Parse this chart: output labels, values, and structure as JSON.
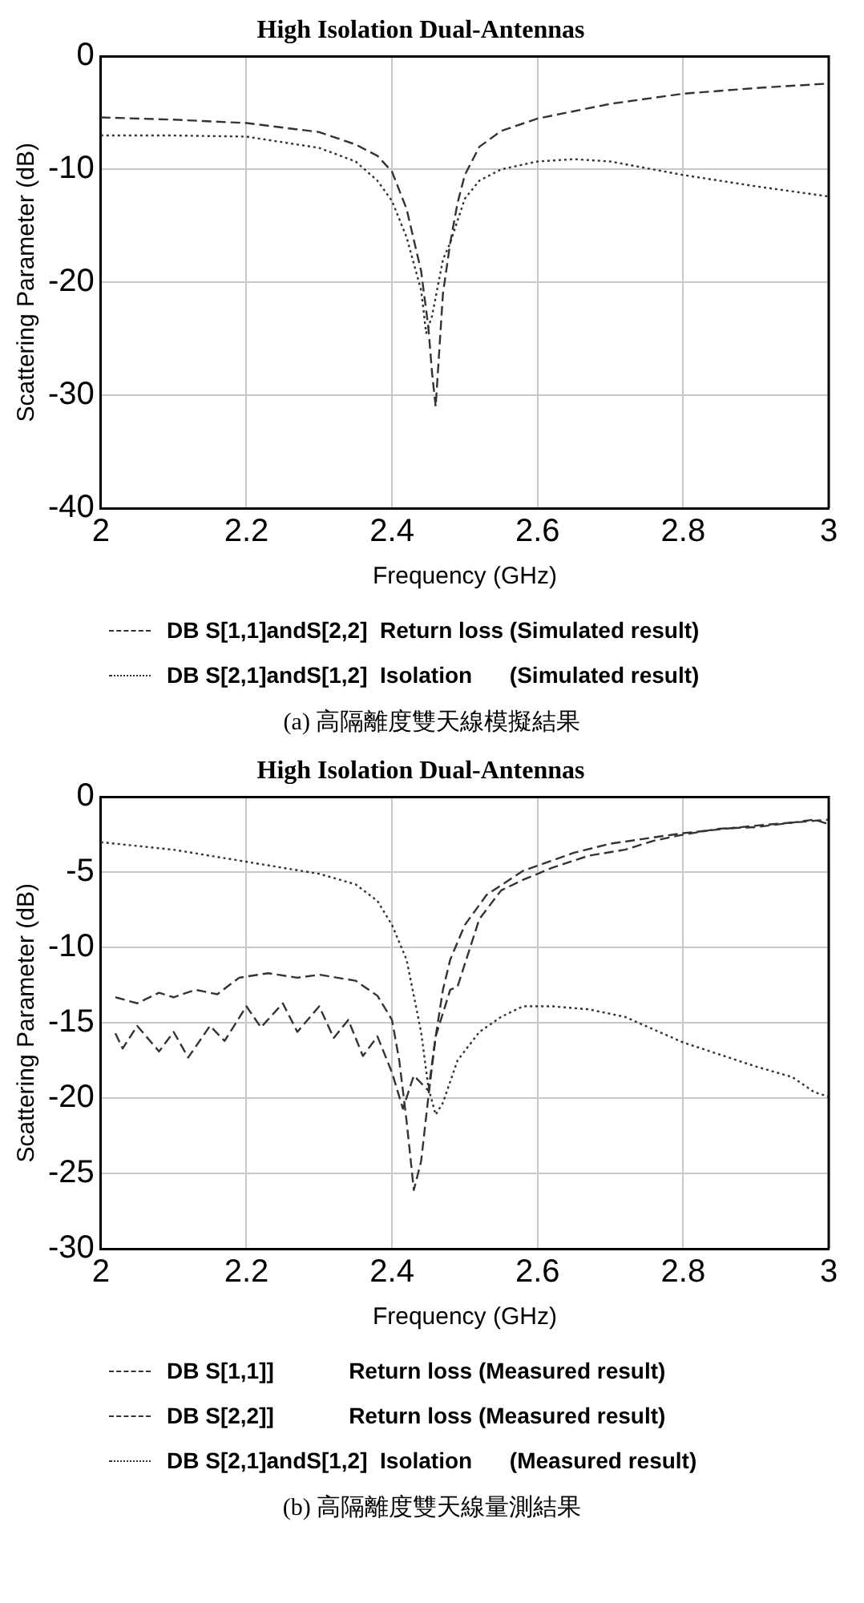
{
  "chart_data": [
    {
      "type": "line",
      "title": "High Isolation Dual-Antennas",
      "xlabel": "Frequency (GHz)",
      "ylabel": "Scattering Parameter (dB)",
      "xlim": [
        2,
        3
      ],
      "xticks": [
        2,
        2.2,
        2.4,
        2.6,
        2.8,
        3
      ],
      "ylim": [
        -40,
        0
      ],
      "yticks": [
        -40,
        -30,
        -20,
        -10,
        0
      ],
      "grid": true,
      "legend": "bottom",
      "marker": "none",
      "annotations": [
        "(a) 高隔離度雙天線模擬結果"
      ],
      "series": [
        {
          "name": "DB S[1,1]andS[2,2]  Return loss (Simulated result)",
          "color": "#333333",
          "line_style": "dashed",
          "x": [
            2.0,
            2.1,
            2.2,
            2.3,
            2.35,
            2.38,
            2.4,
            2.42,
            2.44,
            2.45,
            2.455,
            2.46,
            2.465,
            2.47,
            2.48,
            2.49,
            2.5,
            2.52,
            2.55,
            2.6,
            2.7,
            2.8,
            2.9,
            3.0
          ],
          "values": [
            -5.4,
            -5.6,
            -5.9,
            -6.7,
            -7.8,
            -8.8,
            -10.2,
            -13.5,
            -19,
            -24,
            -28,
            -31,
            -26,
            -21,
            -16.5,
            -13,
            -10.5,
            -8,
            -6.6,
            -5.5,
            -4.2,
            -3.3,
            -2.8,
            -2.4
          ]
        },
        {
          "name": "DB S[2,1]andS[1,2]  Isolation      (Simulated result)",
          "color": "#333333",
          "line_style": "dotted",
          "x": [
            2.0,
            2.1,
            2.2,
            2.3,
            2.35,
            2.38,
            2.4,
            2.42,
            2.44,
            2.447,
            2.455,
            2.47,
            2.48,
            2.5,
            2.52,
            2.55,
            2.6,
            2.65,
            2.7,
            2.8,
            2.9,
            3.0
          ],
          "values": [
            -7.0,
            -7.0,
            -7.1,
            -8.1,
            -9.3,
            -11,
            -12.8,
            -16,
            -20.7,
            -24.5,
            -23,
            -18,
            -16.5,
            -12.6,
            -11,
            -10,
            -9.3,
            -9.1,
            -9.3,
            -10.5,
            -11.5,
            -12.4
          ]
        }
      ]
    },
    {
      "type": "line",
      "title": "High Isolation Dual-Antennas",
      "xlabel": "Frequency (GHz)",
      "ylabel": "Scattering Parameter (dB)",
      "xlim": [
        2,
        3
      ],
      "xticks": [
        2,
        2.2,
        2.4,
        2.6,
        2.8,
        3
      ],
      "ylim": [
        -30,
        0
      ],
      "yticks": [
        -30,
        -25,
        -20,
        -15,
        -10,
        -5,
        0
      ],
      "grid": true,
      "legend": "bottom",
      "marker": "none",
      "annotations": [
        "(b) 高隔離度雙天線量測結果"
      ],
      "series": [
        {
          "name": "DB S[1,1]]            Return loss (Measured result)",
          "color": "#333333",
          "line_style": "dashed",
          "x": [
            2.02,
            2.05,
            2.08,
            2.1,
            2.13,
            2.16,
            2.19,
            2.23,
            2.27,
            2.3,
            2.35,
            2.38,
            2.4,
            2.41,
            2.42,
            2.43,
            2.44,
            2.45,
            2.46,
            2.47,
            2.48,
            2.5,
            2.53,
            2.58,
            2.65,
            2.7,
            2.8,
            2.9,
            3.0
          ],
          "values": [
            -13.3,
            -13.7,
            -13.0,
            -13.3,
            -12.8,
            -13.1,
            -12.0,
            -11.7,
            -12.0,
            -11.8,
            -12.2,
            -13.2,
            -14.8,
            -17.5,
            -21.5,
            -26.1,
            -24.2,
            -19.9,
            -15.9,
            -12.8,
            -10.8,
            -8.5,
            -6.5,
            -4.9,
            -3.7,
            -3.1,
            -2.4,
            -1.9,
            -1.5
          ]
        },
        {
          "name": "DB S[2,2]]            Return loss (Measured result)",
          "color": "#333333",
          "line_style": "dashed",
          "x": [
            2.02,
            2.03,
            2.05,
            2.08,
            2.1,
            2.12,
            2.15,
            2.17,
            2.2,
            2.22,
            2.25,
            2.27,
            2.3,
            2.32,
            2.34,
            2.36,
            2.38,
            2.4,
            2.415,
            2.43,
            2.45,
            2.46,
            2.48,
            2.49,
            2.52,
            2.55,
            2.58,
            2.62,
            2.67,
            2.72,
            2.76,
            2.8,
            2.85,
            2.9,
            2.95,
            2.98,
            3.0
          ],
          "values": [
            -15.7,
            -16.7,
            -15.2,
            -16.9,
            -15.6,
            -17.3,
            -15.2,
            -16.2,
            -13.9,
            -15.3,
            -13.7,
            -15.6,
            -13.9,
            -16.0,
            -14.8,
            -17.2,
            -15.9,
            -18.3,
            -20.7,
            -18.5,
            -19.5,
            -15.9,
            -12.8,
            -12.6,
            -8.1,
            -6.2,
            -5.5,
            -4.7,
            -3.9,
            -3.5,
            -2.9,
            -2.5,
            -2.1,
            -2.0,
            -1.7,
            -1.5,
            -1.8
          ]
        },
        {
          "name": "DB S[2,1]andS[1,2]  Isolation      (Measured result)",
          "color": "#333333",
          "line_style": "dotted",
          "x": [
            2.0,
            2.1,
            2.2,
            2.3,
            2.35,
            2.38,
            2.4,
            2.42,
            2.44,
            2.45,
            2.46,
            2.47,
            2.49,
            2.52,
            2.55,
            2.58,
            2.62,
            2.67,
            2.72,
            2.8,
            2.85,
            2.9,
            2.95,
            2.98,
            3.0
          ],
          "values": [
            -3.0,
            -3.5,
            -4.3,
            -5.1,
            -5.8,
            -6.9,
            -8.5,
            -10.8,
            -15.6,
            -19.3,
            -21.1,
            -20.3,
            -17.5,
            -15.6,
            -14.6,
            -13.9,
            -13.9,
            -14.1,
            -14.6,
            -16.3,
            -17.1,
            -17.9,
            -18.6,
            -19.6,
            -19.9
          ]
        }
      ]
    }
  ]
}
